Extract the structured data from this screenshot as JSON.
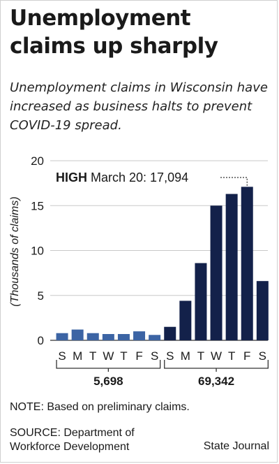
{
  "headline": "Unemployment claims up sharply",
  "deck": "Unemployment claims in Wisconsin have increased as business halts to prevent COVID-19 spread.",
  "note": "NOTE: Based on preliminary claims.",
  "source": "SOURCE: Department of Workforce Development",
  "credit": "State Journal",
  "colors": {
    "week1": "#3c64a4",
    "week2": "#13214a",
    "text": "#1a1a1a"
  },
  "chart_data": {
    "type": "bar",
    "ylabel": "(Thousands of claims)",
    "ylim": [
      0,
      20
    ],
    "yticks": [
      0,
      5,
      10,
      15,
      20
    ],
    "grid": true,
    "series": [
      {
        "categories": [
          "S",
          "M",
          "T",
          "W",
          "T",
          "F",
          "S"
        ],
        "values": [
          0.8,
          1.2,
          0.8,
          0.7,
          0.7,
          1.0,
          0.6
        ],
        "total_label": "5,698"
      },
      {
        "categories": [
          "S",
          "M",
          "T",
          "W",
          "T",
          "F",
          "S"
        ],
        "values": [
          1.5,
          4.4,
          8.6,
          15.0,
          16.3,
          17.094,
          6.6
        ],
        "total_label": "69,342"
      }
    ],
    "annotation": {
      "bold": "HIGH",
      "text": "March 20: 17,094",
      "series": 1,
      "index": 5
    }
  }
}
